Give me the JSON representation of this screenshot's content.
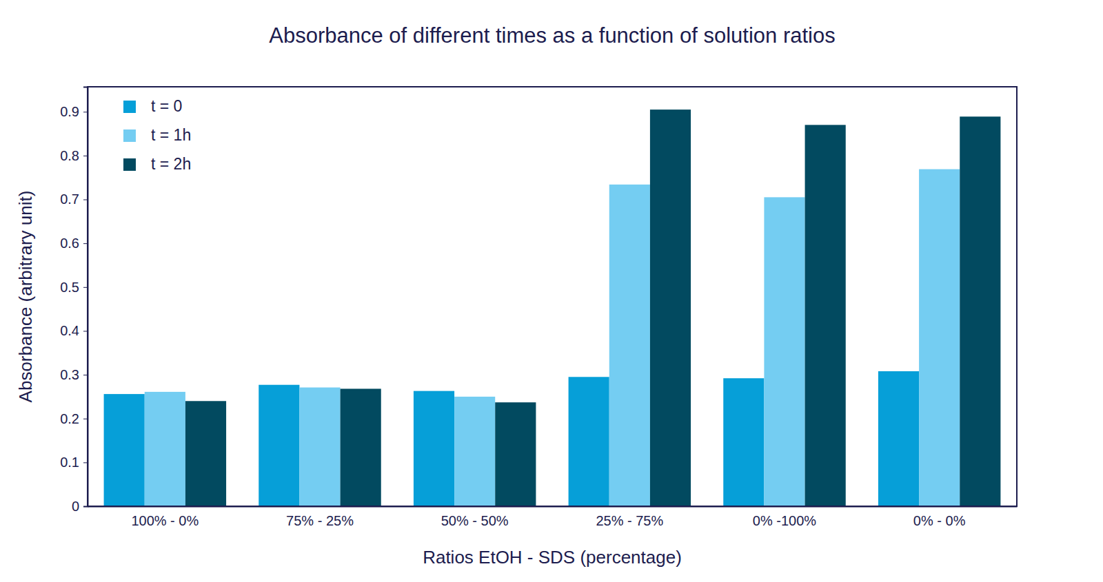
{
  "chart_data": {
    "type": "bar",
    "title": "Absorbance of different times as a function of solution ratios",
    "x_label": "Ratios EtOH - SDS (percentage)",
    "y_label": "Absorbance (arbitrary unit)",
    "categories": [
      "100% - 0%",
      "75% - 25%",
      "50% - 50%",
      "25% - 75%",
      "0% -100%",
      "0% - 0%"
    ],
    "series": [
      {
        "name": "t = 0",
        "color": "#069fd8",
        "values": [
          0.256,
          0.277,
          0.263,
          0.295,
          0.292,
          0.308
        ]
      },
      {
        "name": "t = 1h",
        "color": "#74cdf2",
        "values": [
          0.261,
          0.271,
          0.25,
          0.734,
          0.705,
          0.769
        ]
      },
      {
        "name": "t = 2h",
        "color": "#024a60",
        "values": [
          0.24,
          0.268,
          0.237,
          0.905,
          0.87,
          0.889
        ]
      }
    ],
    "ylim": [
      0,
      0.957
    ],
    "yticks": [
      0,
      0.1,
      0.2,
      0.3,
      0.4,
      0.5,
      0.6,
      0.7,
      0.8,
      0.9
    ],
    "legend": "upper left",
    "grid": false
  }
}
